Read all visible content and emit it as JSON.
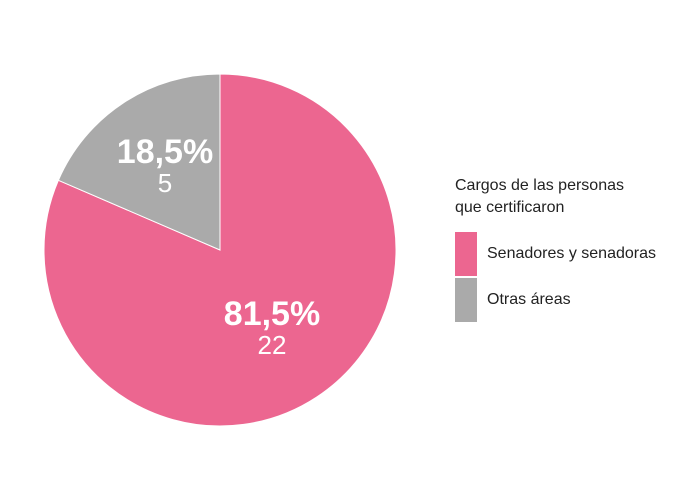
{
  "chart_data": {
    "type": "pie",
    "legend_title": "Cargos de las personas\nque certificaron",
    "legend_position": "right",
    "slices": [
      {
        "name": "Senadores y senadoras",
        "percent_label": "81,5%",
        "count": 22,
        "count_label": "22",
        "color": "#ec6690"
      },
      {
        "name": "Otras áreas",
        "percent_label": "18,5%",
        "count": 5,
        "count_label": "5",
        "color": "#aaaaaa"
      }
    ],
    "start_angle_deg": 0,
    "direction": "clockwise"
  }
}
